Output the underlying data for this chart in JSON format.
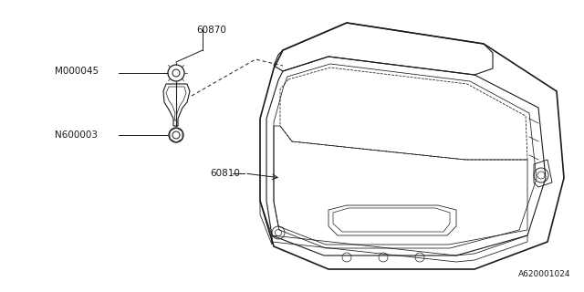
{
  "bg_color": "#ffffff",
  "line_color": "#1a1a1a",
  "label_color": "#1a1a1a",
  "diagram_id": "A620001024",
  "figsize": [
    6.4,
    3.2
  ],
  "dpi": 100
}
